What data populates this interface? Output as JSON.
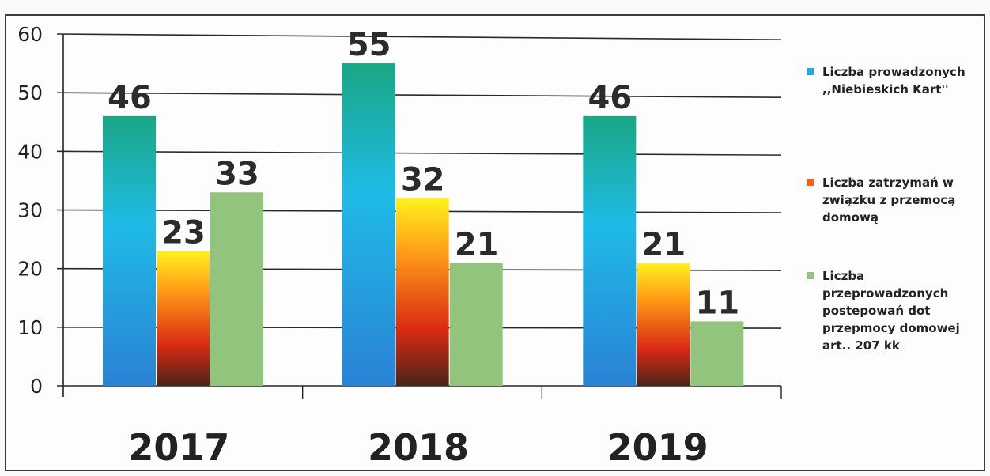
{
  "chart_data": {
    "type": "bar",
    "categories": [
      "2017",
      "2018",
      "2019"
    ],
    "series": [
      {
        "name": "Liczba prowadzonych ,,Niebieskich Kart''",
        "values": [
          46,
          55,
          46
        ],
        "labels": [
          "46",
          "55",
          "46"
        ]
      },
      {
        "name": "Liczba zatrzymań w związku z przemocą domową",
        "values": [
          23,
          32,
          21
        ],
        "labels": [
          "23",
          "32",
          "21"
        ]
      },
      {
        "name": "Liczba przeprowadzonych postepowań dot przepmocy domowej art.. 207 kk",
        "values": [
          33,
          21,
          11
        ],
        "labels": [
          "33",
          "21",
          "11"
        ]
      }
    ],
    "yticks": [
      "0",
      "10",
      "20",
      "30",
      "40",
      "50",
      "60"
    ],
    "ylim": [
      0,
      60
    ],
    "grid": true,
    "legend_position": "right",
    "colors": {
      "series_1": [
        "#1aa88a",
        "#1fb8e8",
        "#2a86d8"
      ],
      "series_2": [
        "#ffee22",
        "#ff8a14",
        "#d92a14",
        "#5a2a1a"
      ],
      "series_3": "#93c47d",
      "axis": "#222222",
      "grid": "#2a2a2a"
    }
  },
  "legend": [
    {
      "lines": [
        "Liczba prowadzonych",
        ",,Niebieskich Kart''"
      ],
      "swatch": "#27a9e0"
    },
    {
      "lines": [
        "Liczba zatrzymań w",
        "związku z przemocą",
        "domową"
      ],
      "swatch": "#ff5a18"
    },
    {
      "lines": [
        "Liczba",
        "przeprowadzonych",
        "postepowań dot",
        "przepmocy domowej",
        "art.. 207 kk"
      ],
      "swatch": "#93c47d"
    }
  ]
}
